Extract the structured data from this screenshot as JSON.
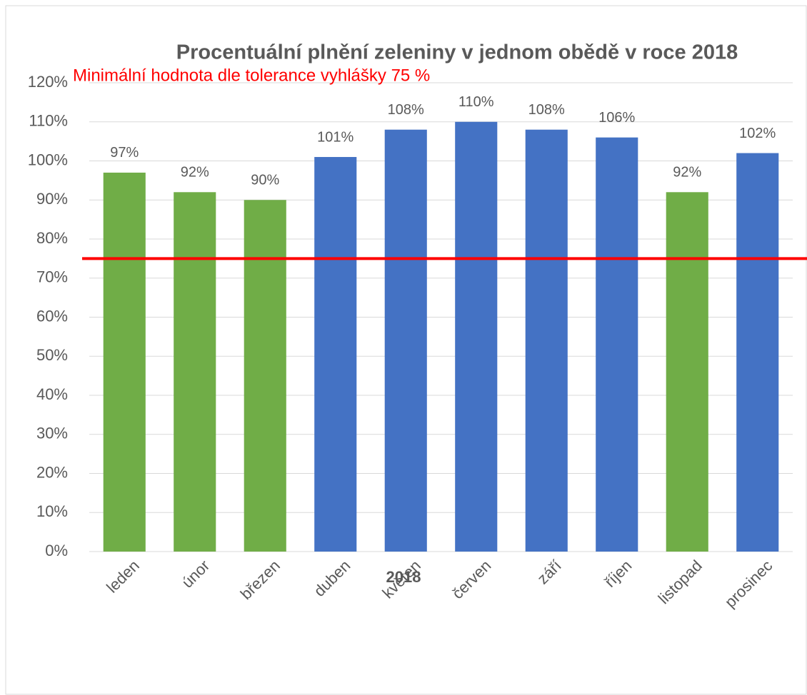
{
  "chart_data": {
    "type": "bar",
    "title": "Procentuální plnění zeleniny v jednom obědě v roce 2018",
    "x_label": "2018",
    "categories": [
      "leden",
      "únor",
      "březen",
      "duben",
      "květen",
      "červen",
      "září",
      "říjen",
      "listopad",
      "prosinec"
    ],
    "values": [
      97,
      92,
      90,
      101,
      108,
      110,
      108,
      106,
      92,
      102
    ],
    "value_labels": [
      "97%",
      "92%",
      "90%",
      "101%",
      "108%",
      "110%",
      "108%",
      "106%",
      "92%",
      "102%"
    ],
    "colors": [
      "#70ad47",
      "#70ad47",
      "#70ad47",
      "#4472c4",
      "#4472c4",
      "#4472c4",
      "#4472c4",
      "#4472c4",
      "#70ad47",
      "#4472c4"
    ],
    "ylim": [
      0,
      120
    ],
    "yticks": [
      {
        "value": 0,
        "label": "0%"
      },
      {
        "value": 10,
        "label": "10%"
      },
      {
        "value": 20,
        "label": "20%"
      },
      {
        "value": 30,
        "label": "30%"
      },
      {
        "value": 40,
        "label": "40%"
      },
      {
        "value": 50,
        "label": "50%"
      },
      {
        "value": 60,
        "label": "60%"
      },
      {
        "value": 70,
        "label": "70%"
      },
      {
        "value": 80,
        "label": "80%"
      },
      {
        "value": 90,
        "label": "90%"
      },
      {
        "value": 100,
        "label": "100%"
      },
      {
        "value": 110,
        "label": "110%"
      },
      {
        "value": 120,
        "label": "120%"
      }
    ],
    "grid": true,
    "threshold": {
      "value": 75,
      "label": "Minimální hodnota dle tolerance vyhlášky 75 %",
      "color": "#ff0000"
    }
  }
}
